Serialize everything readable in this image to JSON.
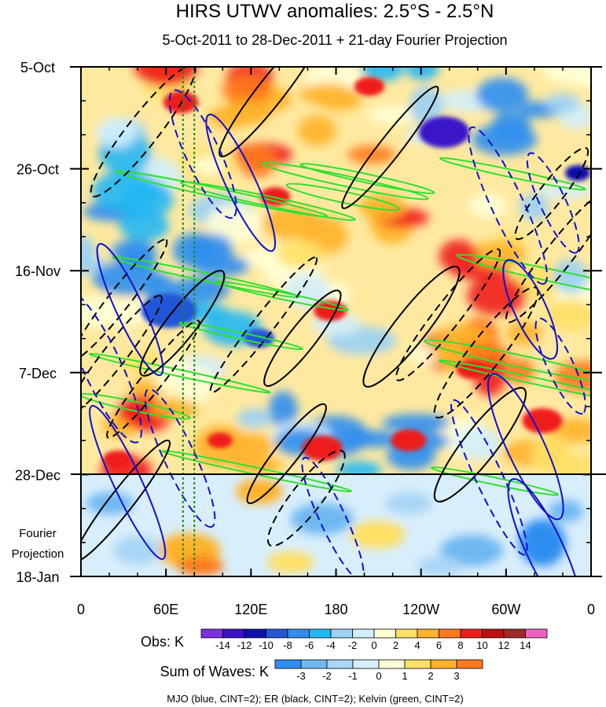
{
  "chart_data": {
    "type": "heatmap",
    "title": "HIRS UTWV anomalies: 2.5°S - 2.5°N",
    "subtitle": "5-Oct-2011 to 28-Dec-2011 + 21-day Fourier Projection",
    "x_ticks": [
      "0",
      "60E",
      "120E",
      "180",
      "120W",
      "60W",
      "0"
    ],
    "x_tick_values": [
      0,
      60,
      120,
      180,
      240,
      300,
      360
    ],
    "xlim": [
      0,
      360
    ],
    "y_ticks": [
      "5-Oct",
      "26-Oct",
      "16-Nov",
      "7-Dec",
      "28-Dec",
      "18-Jan"
    ],
    "y_tick_values": [
      0,
      21,
      42,
      63,
      84,
      105
    ],
    "ylim": [
      0,
      105
    ],
    "projection_start_day": 84,
    "projection_label": [
      "Fourier",
      "Projection"
    ],
    "reference_lines_x": [
      72,
      80
    ],
    "obs_legend": {
      "title": "Obs: K",
      "labels": [
        "-14",
        "-12",
        "-10",
        "-8",
        "-6",
        "-4",
        "-2",
        "0",
        "2",
        "4",
        "6",
        "8",
        "10",
        "12",
        "14"
      ],
      "colors": [
        "#7b2fe0",
        "#3a12c8",
        "#1010b0",
        "#2456d8",
        "#2f8ef0",
        "#21b7f3",
        "#9ad2f5",
        "#d2eefb",
        "#ffffd6",
        "#ffe066",
        "#ffb22a",
        "#ff7a1c",
        "#ef1c1c",
        "#c00f10",
        "#a02828",
        "#f060c0"
      ]
    },
    "waves_legend": {
      "title": "Sum of Waves: K",
      "labels": [
        "-3",
        "-2",
        "-1",
        "0",
        "1",
        "2",
        "3"
      ],
      "colors": [
        "#2f8ef0",
        "#6fb8f2",
        "#a8d6f5",
        "#d8eefb",
        "#ffffd6",
        "#ffe066",
        "#ffb22a",
        "#ff7a1c"
      ]
    },
    "footer": "MJO (blue, CINT=2); ER (black, CINT=2); Kelvin (green, CINT=2)",
    "contour_colors": {
      "mjo": "#1010d0",
      "er": "#000000",
      "kelvin": "#2fe02f",
      "reference": "#1a8a1a"
    }
  }
}
